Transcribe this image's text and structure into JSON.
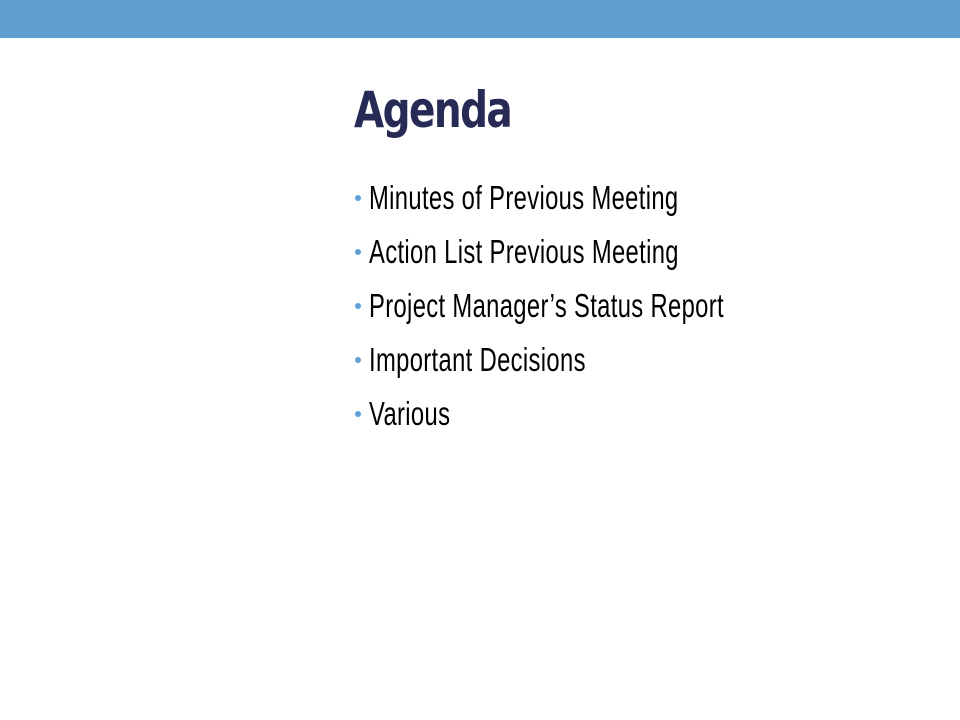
{
  "slide": {
    "title": "Agenda",
    "bullets": [
      "Minutes of Previous Meeting",
      "Action List Previous Meeting",
      "Project Manager’s Status Report",
      "Important Decisions",
      "Various"
    ]
  },
  "colors": {
    "band": "#5F9ED1",
    "title": "#262A55",
    "bullet": "#5F9ED1",
    "text": "#000000"
  }
}
